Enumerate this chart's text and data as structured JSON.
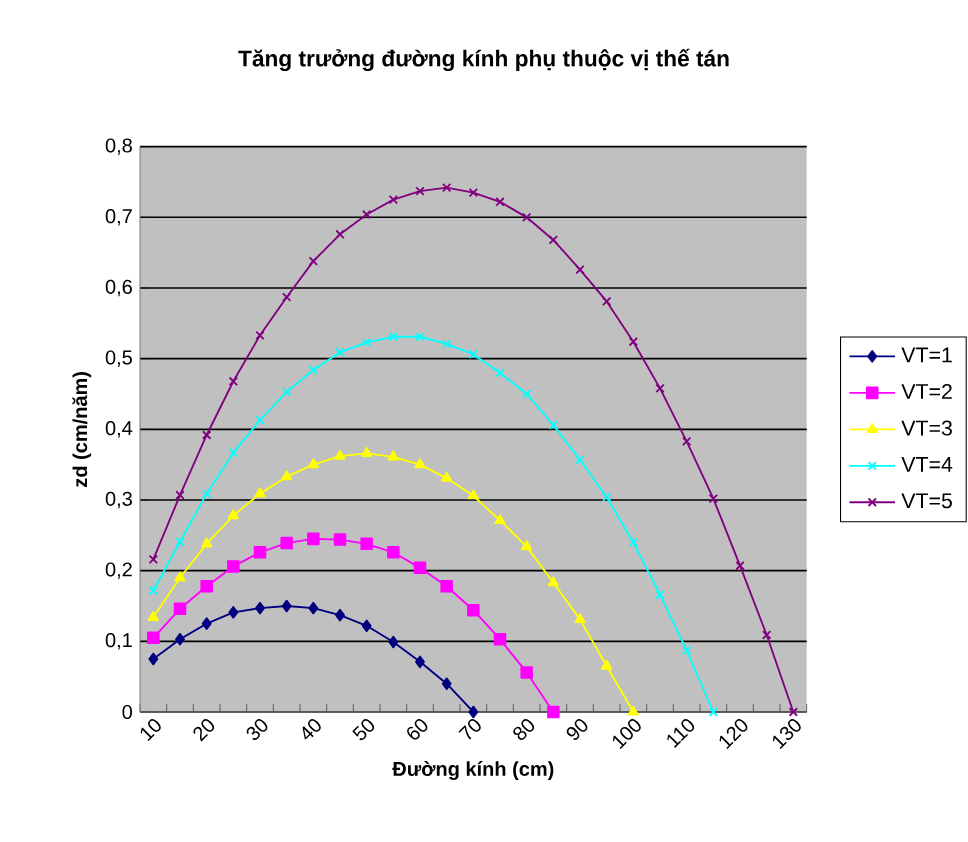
{
  "chart_data": {
    "type": "line",
    "title": "Tăng trưởng đường kính phụ thuộc vị thế tán",
    "xlabel": "Đường kính (cm)",
    "ylabel": "zd (cm/năm)",
    "categories": [
      "10",
      null,
      "20",
      null,
      "30",
      null,
      "40",
      null,
      "50",
      null,
      "60",
      null,
      "70",
      null,
      "80",
      null,
      "90",
      null,
      "100",
      null,
      "110",
      null,
      "120",
      null,
      "130"
    ],
    "ylim": [
      0,
      0.8
    ],
    "yticks": [
      0,
      {
        "value": 0.1,
        "label": "0,1"
      },
      {
        "value": 0.2,
        "label": "0,2"
      },
      {
        "value": 0.3,
        "label": "0,3"
      },
      {
        "value": 0.4,
        "label": "0,4"
      },
      {
        "value": 0.5,
        "label": "0,5"
      },
      {
        "value": 0.6,
        "label": "0,6"
      },
      {
        "value": 0.7,
        "label": "0,7"
      },
      {
        "value": 0.8,
        "label": "0,8"
      }
    ],
    "grid": "y",
    "legend": "right",
    "line_style": "solid",
    "series": [
      {
        "name": "VT=1",
        "color": "#000080",
        "marker": "diamond",
        "values": [
          0.075,
          0.103,
          0.125,
          0.141,
          0.147,
          0.15,
          0.147,
          0.137,
          0.122,
          0.099,
          0.071,
          0.04,
          0,
          null,
          null,
          null,
          null,
          null,
          null,
          null,
          null,
          null,
          null,
          null,
          null
        ]
      },
      {
        "name": "VT=2",
        "color": "#ff00ff",
        "marker": "square",
        "values": [
          0.105,
          0.146,
          0.178,
          0.206,
          0.226,
          0.239,
          0.245,
          0.244,
          0.238,
          0.226,
          0.204,
          0.178,
          0.144,
          0.103,
          0.056,
          0,
          null,
          null,
          null,
          null,
          null,
          null,
          null,
          null,
          null
        ]
      },
      {
        "name": "VT=3",
        "color": "#ffff00",
        "marker": "triangle",
        "values": [
          0.134,
          0.19,
          0.238,
          0.278,
          0.309,
          0.333,
          0.35,
          0.362,
          0.366,
          0.361,
          0.35,
          0.331,
          0.306,
          0.271,
          0.234,
          0.183,
          0.131,
          0.065,
          0,
          null,
          null,
          null,
          null,
          null,
          null
        ]
      },
      {
        "name": "VT=4",
        "color": "#00ffff",
        "marker": "cross",
        "values": [
          0.172,
          0.241,
          0.309,
          0.367,
          0.413,
          0.453,
          0.484,
          0.509,
          0.523,
          0.531,
          0.531,
          0.521,
          0.506,
          0.48,
          0.45,
          0.406,
          0.357,
          0.304,
          0.24,
          0.166,
          0.087,
          0,
          null,
          null,
          null
        ]
      },
      {
        "name": "VT=5",
        "color": "#800080",
        "marker": "cross",
        "values": [
          0.216,
          0.307,
          0.392,
          0.468,
          0.533,
          0.587,
          0.638,
          0.676,
          0.704,
          0.725,
          0.737,
          0.742,
          0.735,
          0.722,
          0.7,
          0.668,
          0.626,
          0.581,
          0.524,
          0.458,
          0.383,
          0.302,
          0.207,
          0.109,
          0
        ]
      }
    ]
  }
}
